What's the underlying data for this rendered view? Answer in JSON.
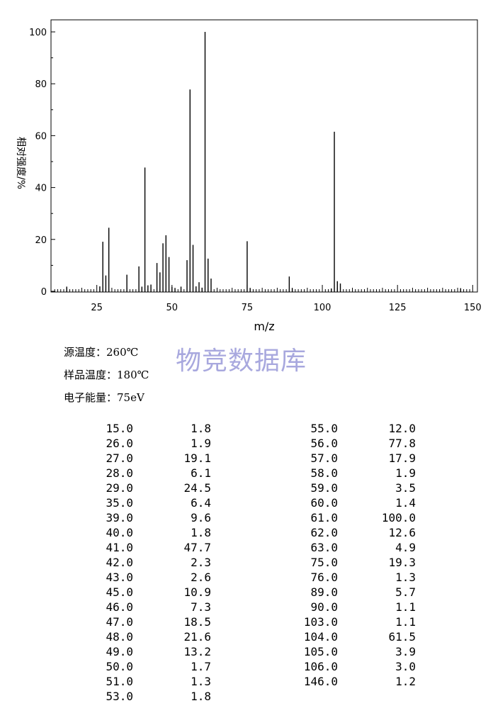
{
  "chart_data": {
    "type": "bar",
    "xlabel": "m/z",
    "ylabel": "相对强度/%",
    "xlim": [
      10,
      150
    ],
    "ylim": [
      0,
      100
    ],
    "xticks": [
      25,
      50,
      75,
      100,
      125,
      150
    ],
    "yticks": [
      0,
      20,
      40,
      60,
      80,
      100
    ],
    "grid": false,
    "x": [
      15,
      26,
      27,
      28,
      29,
      35,
      39,
      40,
      41,
      42,
      43,
      45,
      46,
      47,
      48,
      49,
      50,
      51,
      53,
      55,
      56,
      57,
      58,
      59,
      60,
      61,
      62,
      63,
      75,
      76,
      89,
      90,
      103,
      104,
      105,
      106,
      146
    ],
    "values": [
      1.8,
      1.9,
      19.1,
      6.1,
      24.5,
      6.4,
      9.6,
      1.8,
      47.7,
      2.3,
      2.6,
      10.9,
      7.3,
      18.5,
      21.6,
      13.2,
      1.7,
      1.3,
      1.8,
      12.0,
      77.8,
      17.9,
      1.9,
      3.5,
      1.4,
      100.0,
      12.6,
      4.9,
      19.3,
      1.3,
      5.7,
      1.1,
      1.1,
      61.5,
      3.9,
      3.0,
      1.2
    ]
  },
  "watermark": "物竞数据库",
  "conditions": [
    {
      "label": "源温度：",
      "value": "260℃"
    },
    {
      "label": "样品温度：",
      "value": "180℃"
    },
    {
      "label": "电子能量：",
      "value": "75eV"
    }
  ],
  "peak_table": {
    "left": [
      [
        "15.0",
        "1.8"
      ],
      [
        "26.0",
        "1.9"
      ],
      [
        "27.0",
        "19.1"
      ],
      [
        "28.0",
        "6.1"
      ],
      [
        "29.0",
        "24.5"
      ],
      [
        "35.0",
        "6.4"
      ],
      [
        "39.0",
        "9.6"
      ],
      [
        "40.0",
        "1.8"
      ],
      [
        "41.0",
        "47.7"
      ],
      [
        "42.0",
        "2.3"
      ],
      [
        "43.0",
        "2.6"
      ],
      [
        "45.0",
        "10.9"
      ],
      [
        "46.0",
        "7.3"
      ],
      [
        "47.0",
        "18.5"
      ],
      [
        "48.0",
        "21.6"
      ],
      [
        "49.0",
        "13.2"
      ],
      [
        "50.0",
        "1.7"
      ],
      [
        "51.0",
        "1.3"
      ],
      [
        "53.0",
        "1.8"
      ]
    ],
    "right": [
      [
        "55.0",
        "12.0"
      ],
      [
        "56.0",
        "77.8"
      ],
      [
        "57.0",
        "17.9"
      ],
      [
        "58.0",
        "1.9"
      ],
      [
        "59.0",
        "3.5"
      ],
      [
        "60.0",
        "1.4"
      ],
      [
        "61.0",
        "100.0"
      ],
      [
        "62.0",
        "12.6"
      ],
      [
        "63.0",
        "4.9"
      ],
      [
        "75.0",
        "19.3"
      ],
      [
        "76.0",
        "1.3"
      ],
      [
        "89.0",
        "5.7"
      ],
      [
        "90.0",
        "1.1"
      ],
      [
        "103.0",
        "1.1"
      ],
      [
        "104.0",
        "61.5"
      ],
      [
        "105.0",
        "3.9"
      ],
      [
        "106.0",
        "3.0"
      ],
      [
        "146.0",
        "1.2"
      ]
    ]
  }
}
